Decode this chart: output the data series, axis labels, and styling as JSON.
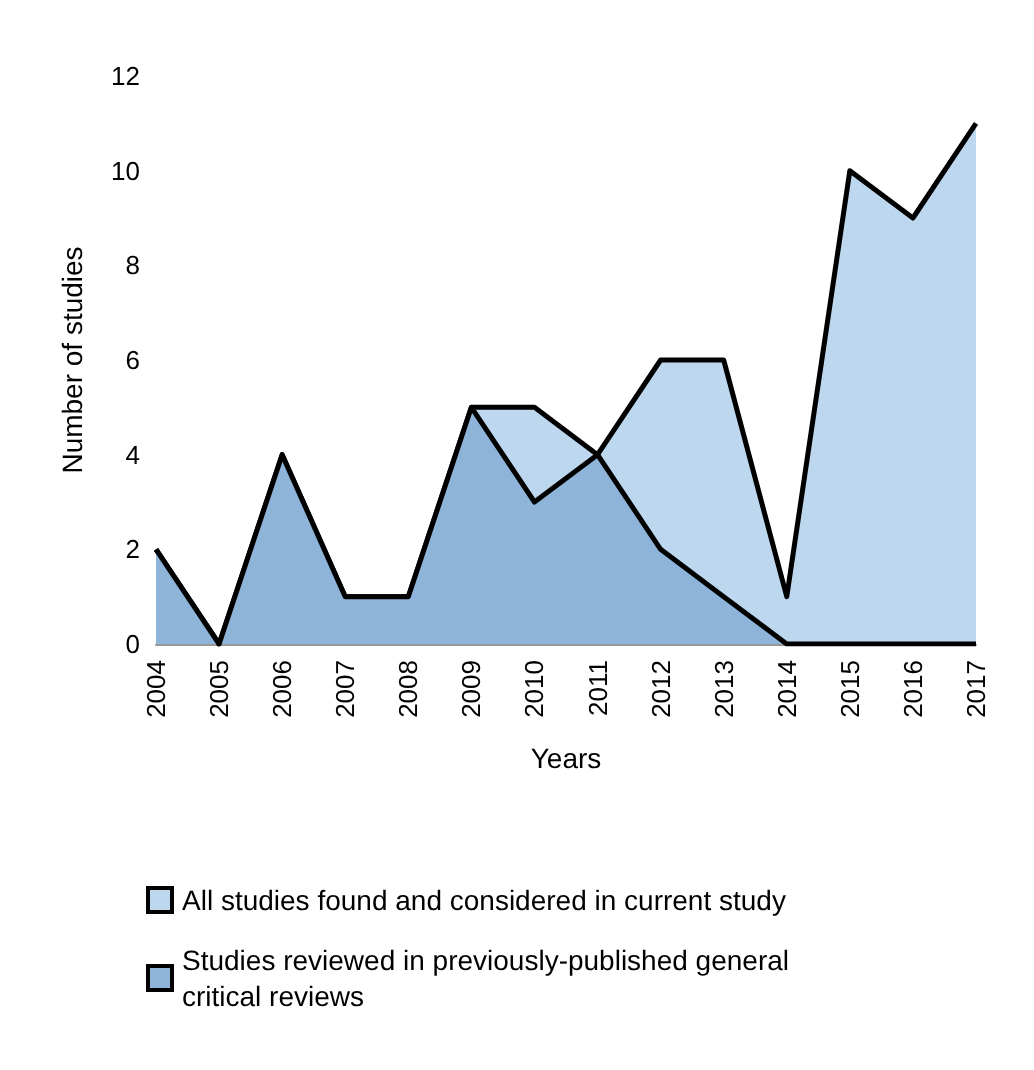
{
  "chart_data": {
    "type": "area",
    "xlabel": "Years",
    "ylabel": "Number of studies",
    "categories": [
      "2004",
      "2005",
      "2006",
      "2007",
      "2008",
      "2009",
      "2010",
      "2011",
      "2012",
      "2013",
      "2014",
      "2015",
      "2016",
      "2017"
    ],
    "series": [
      {
        "name": "All studies found and considered in current study",
        "color": "#bdd7ee",
        "values": [
          2,
          0,
          4,
          1,
          1,
          5,
          5,
          4,
          6,
          6,
          1,
          10,
          9,
          11
        ]
      },
      {
        "name": "Studies reviewed in previously-published general critical reviews",
        "color": "#8fb4d9",
        "values": [
          2,
          0,
          4,
          1,
          1,
          5,
          3,
          4,
          2,
          1,
          0,
          0,
          0,
          0
        ]
      }
    ],
    "ylim": [
      0,
      12
    ],
    "yticks": [
      0,
      2,
      4,
      6,
      8,
      10,
      12
    ],
    "grid": false,
    "legend": "bottom left"
  }
}
